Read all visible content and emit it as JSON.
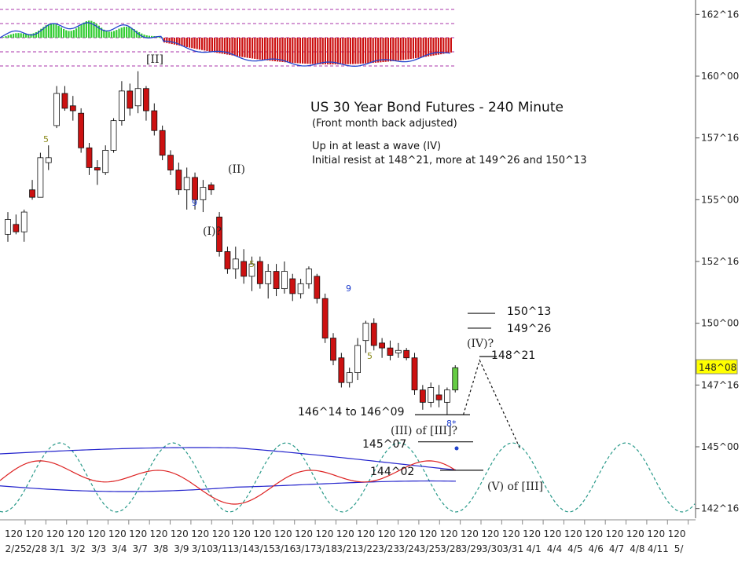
{
  "chart_data": {
    "type": "candlestick",
    "title": "US 30 Year Bond Futures - 240 Minute",
    "subtitle": "(Front month back adjusted)",
    "notes": [
      "Up in at least a wave (IV)",
      "Initial resist at 148^21, more at 149^26 and 150^13"
    ],
    "y_axis": {
      "side": "right",
      "ylim": [
        142.5,
        162.5
      ],
      "ticks": [
        {
          "label": "162^16",
          "value": 162.5
        },
        {
          "label": "160^00",
          "value": 160.0
        },
        {
          "label": "157^16",
          "value": 157.5
        },
        {
          "label": "155^00",
          "value": 155.0
        },
        {
          "label": "152^16",
          "value": 152.5
        },
        {
          "label": "150^00",
          "value": 150.0
        },
        {
          "label": "147^16",
          "value": 147.5
        },
        {
          "label": "145^00",
          "value": 145.0
        },
        {
          "label": "142^16",
          "value": 142.5
        }
      ],
      "current_price_label": "148^08",
      "current_price": 148.25,
      "current_price_color": "#ffff00"
    },
    "x_axis": {
      "session_label": "120",
      "dates": [
        "2/25",
        "2/28",
        "3/1",
        "3/2",
        "3/3",
        "3/4",
        "3/7",
        "3/8",
        "3/9",
        "3/10",
        "3/11",
        "3/14",
        "3/15",
        "3/16",
        "3/17",
        "3/18",
        "3/21",
        "3/22",
        "3/23",
        "3/24",
        "3/25",
        "3/28",
        "3/29",
        "3/30",
        "3/31",
        "4/1",
        "4/4",
        "4/5",
        "4/6",
        "4/7",
        "4/8",
        "4/11",
        "5/"
      ]
    },
    "candles": [
      [
        153.6,
        154.5,
        153.3,
        154.2
      ],
      [
        154.0,
        154.4,
        153.6,
        153.7
      ],
      [
        153.7,
        154.6,
        153.3,
        154.5
      ],
      [
        155.4,
        155.8,
        155.0,
        155.1
      ],
      [
        155.1,
        156.9,
        155.1,
        156.7
      ],
      [
        156.5,
        157.2,
        156.2,
        156.7
      ],
      [
        158.0,
        159.6,
        157.9,
        159.3
      ],
      [
        159.3,
        159.6,
        158.6,
        158.7
      ],
      [
        158.8,
        159.2,
        158.2,
        158.6
      ],
      [
        158.5,
        158.7,
        156.9,
        157.1
      ],
      [
        157.1,
        157.3,
        156.0,
        156.3
      ],
      [
        156.3,
        156.6,
        155.6,
        156.2
      ],
      [
        156.1,
        157.2,
        156.0,
        157.0
      ],
      [
        157.0,
        158.3,
        156.9,
        158.2
      ],
      [
        158.2,
        159.8,
        158.0,
        159.4
      ],
      [
        159.4,
        159.7,
        158.4,
        158.7
      ],
      [
        158.8,
        160.2,
        158.5,
        159.5
      ],
      [
        159.5,
        159.6,
        158.2,
        158.6
      ],
      [
        158.6,
        158.9,
        157.6,
        157.8
      ],
      [
        157.8,
        158.0,
        156.6,
        156.8
      ],
      [
        156.8,
        157.0,
        156.0,
        156.2
      ],
      [
        156.2,
        156.5,
        155.2,
        155.4
      ],
      [
        155.4,
        156.3,
        154.6,
        155.9
      ],
      [
        155.9,
        156.1,
        154.6,
        155.0
      ],
      [
        155.0,
        155.8,
        154.5,
        155.5
      ],
      [
        155.6,
        155.7,
        155.2,
        155.4
      ],
      [
        154.3,
        154.5,
        152.7,
        152.9
      ],
      [
        152.9,
        153.1,
        152.0,
        152.2
      ],
      [
        152.2,
        153.1,
        151.8,
        152.6
      ],
      [
        152.5,
        153.0,
        151.6,
        151.9
      ],
      [
        151.9,
        152.7,
        151.3,
        152.4
      ],
      [
        152.5,
        152.7,
        151.4,
        151.6
      ],
      [
        151.6,
        152.4,
        151.0,
        152.1
      ],
      [
        152.1,
        152.4,
        151.1,
        151.4
      ],
      [
        151.4,
        152.5,
        151.2,
        152.1
      ],
      [
        151.8,
        152.0,
        150.9,
        151.2
      ],
      [
        151.2,
        151.8,
        151.0,
        151.6
      ],
      [
        151.6,
        152.3,
        151.4,
        152.2
      ],
      [
        151.9,
        152.0,
        150.8,
        151.0
      ],
      [
        151.0,
        151.2,
        149.2,
        149.4
      ],
      [
        149.4,
        149.6,
        148.3,
        148.5
      ],
      [
        148.6,
        148.8,
        147.4,
        147.6
      ],
      [
        147.6,
        148.2,
        147.4,
        148.0
      ],
      [
        148.0,
        149.4,
        147.7,
        149.1
      ],
      [
        149.3,
        150.1,
        148.8,
        150.0
      ],
      [
        150.0,
        150.2,
        148.9,
        149.1
      ],
      [
        149.2,
        149.4,
        148.6,
        149.0
      ],
      [
        149.0,
        149.3,
        148.5,
        148.7
      ],
      [
        148.8,
        149.2,
        148.6,
        148.9
      ],
      [
        148.9,
        149.0,
        148.5,
        148.6
      ],
      [
        148.6,
        148.8,
        147.1,
        147.3
      ],
      [
        147.3,
        147.5,
        146.5,
        146.8
      ],
      [
        146.8,
        147.6,
        146.6,
        147.4
      ],
      [
        147.1,
        147.5,
        146.6,
        146.9
      ],
      [
        146.8,
        147.4,
        146.3,
        147.3
      ],
      [
        147.3,
        148.3,
        147.2,
        148.2
      ]
    ],
    "annotations": {
      "wave_labels": [
        {
          "text": "[II]"
        },
        {
          "text": "(II)"
        },
        {
          "text": "(I)?"
        },
        {
          "text": "(IV)?"
        },
        {
          "text": "(III) of [III]?"
        },
        {
          "text": "(V) of [III]"
        }
      ],
      "counts": [
        {
          "text": "5",
          "color": "#8a8a1a"
        },
        {
          "text": "9",
          "color": "#1a3acc"
        },
        {
          "text": "5",
          "color": "#8a8a1a"
        },
        {
          "text": "9",
          "color": "#1a3acc"
        },
        {
          "text": "5",
          "color": "#8a8a1a"
        },
        {
          "text": "8*",
          "color": "#1a3acc"
        }
      ],
      "price_levels": [
        {
          "text": "150^13",
          "value": 150.4
        },
        {
          "text": "149^26",
          "value": 149.8
        },
        {
          "text": "148^21",
          "value": 148.65
        },
        {
          "text": "146^14 to 146^09",
          "value": 146.3
        },
        {
          "text": "145^07",
          "value": 145.2
        },
        {
          "text": "144^02",
          "value": 144.05
        }
      ]
    },
    "projection": [
      {
        "x_index": 56,
        "value": 146.3
      },
      {
        "x_index": 58,
        "value": 148.5
      },
      {
        "x_index": 63,
        "value": 144.9
      }
    ],
    "indicators": {
      "top_histogram": {
        "positive_color": "#33cc33",
        "negative_color": "#cc1111",
        "line_color": "#2244cc",
        "guide_color": "#aa33aa"
      },
      "bottom_oscillator": {
        "cycle_color": "#2a9a8a",
        "band_color": "#2222cc",
        "osc_color": "#dd2222"
      }
    },
    "colors": {
      "down_candle": "#cc1111",
      "up_candle": "#ffffff",
      "up_candle_highlight": "#66cc44"
    }
  }
}
